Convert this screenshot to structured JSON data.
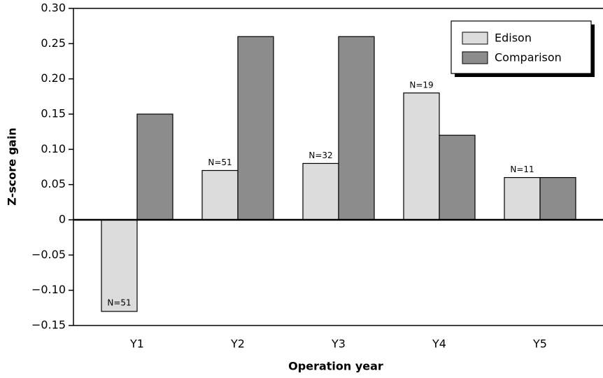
{
  "chart_data": {
    "type": "bar",
    "x_label": "Operation year",
    "y_label": "Z-score gain",
    "categories": [
      "Y1",
      "Y2",
      "Y3",
      "Y4",
      "Y5"
    ],
    "series": [
      {
        "name": "Edison",
        "color": "#dcdcdc",
        "values": [
          -0.13,
          0.07,
          0.08,
          0.18,
          0.06
        ],
        "labels": [
          "N=51",
          "N=51",
          "N=32",
          "N=19",
          "N=11"
        ]
      },
      {
        "name": "Comparison",
        "color": "#8c8c8c",
        "values": [
          0.15,
          0.26,
          0.26,
          0.12,
          0.06
        ]
      }
    ],
    "ylim": [
      -0.15,
      0.3
    ],
    "yticks": [
      {
        "value": 0.3,
        "label": "0.30"
      },
      {
        "value": 0.25,
        "label": "0.25"
      },
      {
        "value": 0.2,
        "label": "0.20"
      },
      {
        "value": 0.15,
        "label": "0.15"
      },
      {
        "value": 0.1,
        "label": "0.10"
      },
      {
        "value": 0.05,
        "label": "0.05"
      },
      0,
      {
        "value": -0.05,
        "label": "−0.05"
      },
      {
        "value": -0.1,
        "label": "−0.10"
      },
      {
        "value": -0.15,
        "label": "−0.15"
      }
    ],
    "legend": "top-right"
  }
}
